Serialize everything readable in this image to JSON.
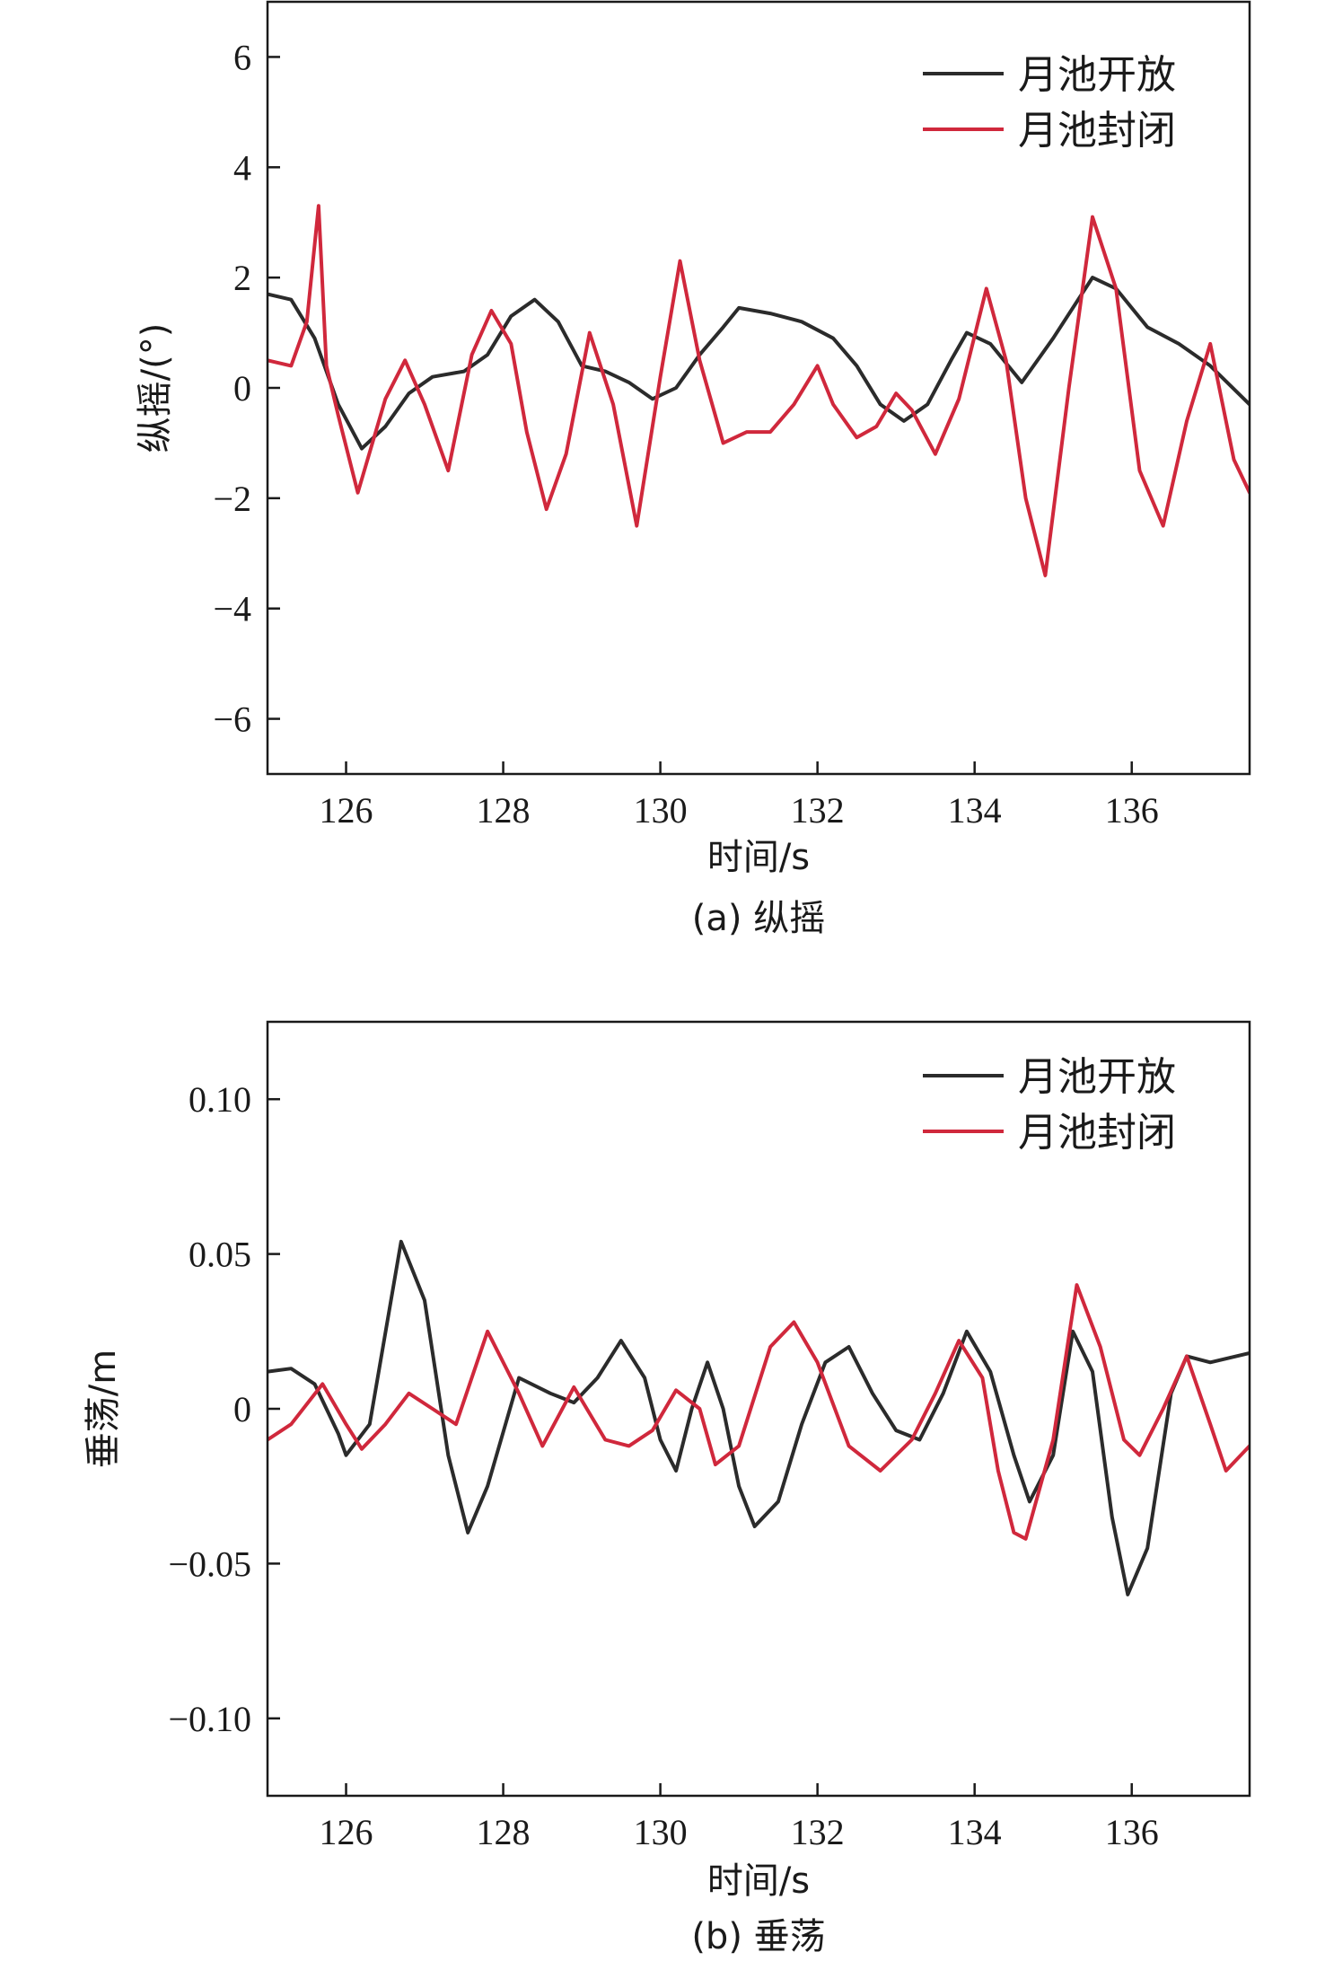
{
  "chart_data": [
    {
      "type": "line",
      "caption": "(a) 纵摇",
      "xlabel": "时间/s",
      "ylabel": "纵摇/(°)",
      "xlim": [
        125,
        137.5
      ],
      "ylim": [
        -7,
        7
      ],
      "xticks": [
        126,
        128,
        130,
        132,
        134,
        136
      ],
      "yticks": [
        -6,
        -4,
        -2,
        0,
        2,
        4,
        6
      ],
      "ytick_labels": [
        "−6",
        "−4",
        "−2",
        "0",
        "2",
        "4",
        "6"
      ],
      "legend_position": "top-right",
      "series": [
        {
          "name": "月池开放",
          "color": "#2b2b2b",
          "x": [
            125.0,
            125.3,
            125.6,
            125.9,
            126.2,
            126.5,
            126.8,
            127.1,
            127.5,
            127.8,
            128.1,
            128.4,
            128.7,
            129.0,
            129.3,
            129.6,
            129.9,
            130.2,
            130.5,
            130.8,
            131.0,
            131.4,
            131.8,
            132.2,
            132.5,
            132.8,
            133.1,
            133.4,
            133.7,
            133.9,
            134.2,
            134.6,
            135.0,
            135.5,
            135.8,
            136.2,
            136.6,
            137.0,
            137.5
          ],
          "values": [
            1.7,
            1.6,
            0.9,
            -0.3,
            -1.1,
            -0.7,
            -0.1,
            0.2,
            0.3,
            0.6,
            1.3,
            1.6,
            1.2,
            0.4,
            0.3,
            0.1,
            -0.2,
            0.0,
            0.6,
            1.1,
            1.45,
            1.35,
            1.2,
            0.9,
            0.4,
            -0.3,
            -0.6,
            -0.3,
            0.5,
            1.0,
            0.8,
            0.1,
            0.9,
            2.0,
            1.8,
            1.1,
            0.8,
            0.4,
            -0.3
          ]
        },
        {
          "name": "月池封闭",
          "color": "#d0283c",
          "x": [
            125.0,
            125.3,
            125.5,
            125.65,
            125.75,
            125.9,
            126.15,
            126.5,
            126.75,
            127.0,
            127.3,
            127.6,
            127.85,
            128.1,
            128.3,
            128.55,
            128.8,
            129.1,
            129.4,
            129.7,
            130.0,
            130.25,
            130.5,
            130.8,
            131.1,
            131.4,
            131.7,
            132.0,
            132.2,
            132.5,
            132.75,
            133.0,
            133.2,
            133.5,
            133.8,
            134.15,
            134.4,
            134.65,
            134.9,
            135.2,
            135.5,
            135.8,
            136.1,
            136.4,
            136.7,
            137.0,
            137.3,
            137.5
          ],
          "values": [
            0.5,
            0.4,
            1.2,
            3.3,
            0.4,
            -0.5,
            -1.9,
            -0.2,
            0.5,
            -0.3,
            -1.5,
            0.6,
            1.4,
            0.8,
            -0.8,
            -2.2,
            -1.2,
            1.0,
            -0.3,
            -2.5,
            0.2,
            2.3,
            0.5,
            -1.0,
            -0.8,
            -0.8,
            -0.3,
            0.4,
            -0.3,
            -0.9,
            -0.7,
            -0.1,
            -0.4,
            -1.2,
            -0.2,
            1.8,
            0.5,
            -2.0,
            -3.4,
            0.0,
            3.1,
            1.8,
            -1.5,
            -2.5,
            -0.6,
            0.8,
            -1.3,
            -1.9
          ]
        }
      ]
    },
    {
      "type": "line",
      "caption": "(b) 垂荡",
      "xlabel": "时间/s",
      "ylabel": "垂荡/m",
      "xlim": [
        125,
        137.5
      ],
      "ylim": [
        -0.125,
        0.125
      ],
      "xticks": [
        126,
        128,
        130,
        132,
        134,
        136
      ],
      "yticks": [
        -0.1,
        -0.05,
        0,
        0.05,
        0.1
      ],
      "ytick_labels": [
        "−0.10",
        "−0.05",
        "0",
        "0.05",
        "0.10"
      ],
      "legend_position": "top-right",
      "series": [
        {
          "name": "月池开放",
          "color": "#2b2b2b",
          "x": [
            125.0,
            125.3,
            125.6,
            125.9,
            126.0,
            126.3,
            126.7,
            127.0,
            127.3,
            127.55,
            127.8,
            128.2,
            128.6,
            128.9,
            129.2,
            129.5,
            129.8,
            130.0,
            130.2,
            130.4,
            130.6,
            130.8,
            131.0,
            131.2,
            131.5,
            131.8,
            132.1,
            132.4,
            132.7,
            133.0,
            133.3,
            133.6,
            133.9,
            134.2,
            134.5,
            134.7,
            135.0,
            135.25,
            135.5,
            135.75,
            135.95,
            136.2,
            136.5,
            136.7,
            137.0,
            137.5
          ],
          "values": [
            0.012,
            0.013,
            0.008,
            -0.008,
            -0.015,
            -0.005,
            0.054,
            0.035,
            -0.015,
            -0.04,
            -0.025,
            0.01,
            0.005,
            0.002,
            0.01,
            0.022,
            0.01,
            -0.01,
            -0.02,
            0.0,
            0.015,
            0.0,
            -0.025,
            -0.038,
            -0.03,
            -0.005,
            0.015,
            0.02,
            0.005,
            -0.007,
            -0.01,
            0.005,
            0.025,
            0.012,
            -0.015,
            -0.03,
            -0.015,
            0.025,
            0.012,
            -0.035,
            -0.06,
            -0.045,
            0.005,
            0.017,
            0.015,
            0.018
          ]
        },
        {
          "name": "月池封闭",
          "color": "#d0283c",
          "x": [
            125.0,
            125.3,
            125.7,
            126.0,
            126.2,
            126.5,
            126.8,
            127.1,
            127.4,
            127.8,
            128.2,
            128.5,
            128.9,
            129.3,
            129.6,
            129.9,
            130.2,
            130.5,
            130.7,
            131.0,
            131.4,
            131.7,
            132.0,
            132.4,
            132.8,
            133.2,
            133.5,
            133.8,
            134.1,
            134.3,
            134.5,
            134.65,
            135.0,
            135.3,
            135.6,
            135.9,
            136.1,
            136.4,
            136.7,
            137.0,
            137.2,
            137.5
          ],
          "values": [
            -0.01,
            -0.005,
            0.008,
            -0.005,
            -0.013,
            -0.005,
            0.005,
            0.0,
            -0.005,
            0.025,
            0.005,
            -0.012,
            0.007,
            -0.01,
            -0.012,
            -0.007,
            0.006,
            0.0,
            -0.018,
            -0.012,
            0.02,
            0.028,
            0.015,
            -0.012,
            -0.02,
            -0.01,
            0.005,
            0.022,
            0.01,
            -0.02,
            -0.04,
            -0.042,
            -0.01,
            0.04,
            0.02,
            -0.01,
            -0.015,
            0.0,
            0.017,
            -0.005,
            -0.02,
            -0.012
          ]
        }
      ]
    }
  ]
}
